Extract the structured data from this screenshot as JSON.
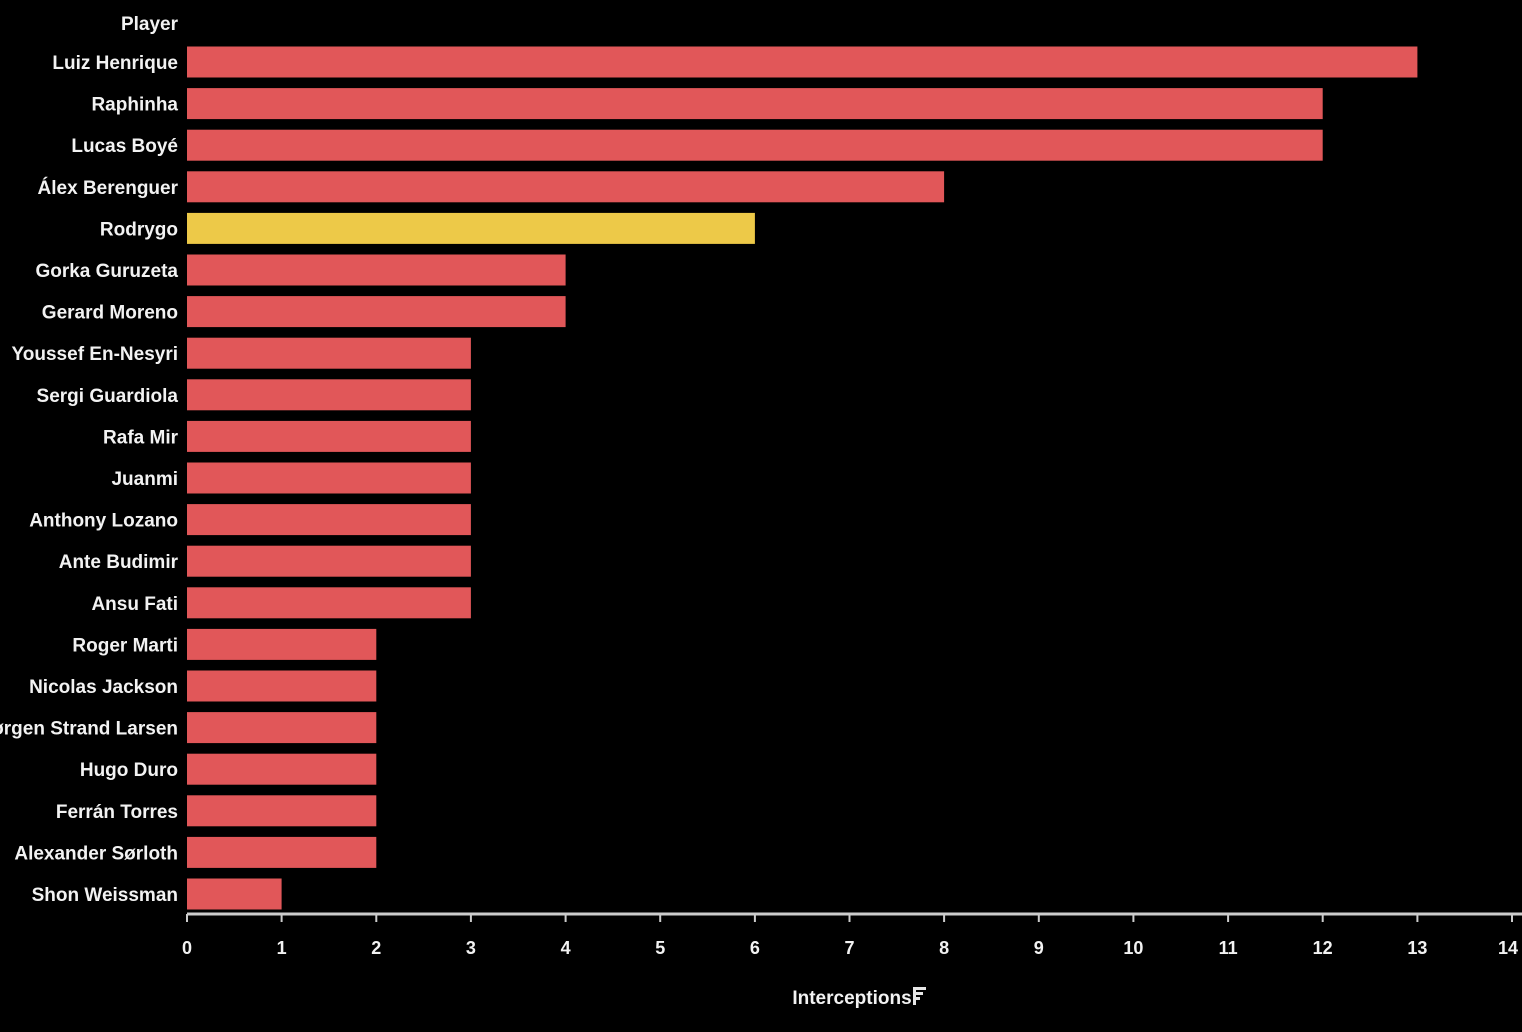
{
  "chart_data": {
    "type": "bar",
    "orientation": "horizontal",
    "row_header": "Player",
    "xlabel": "Interceptions",
    "sort_icon": "sort-descending-icon",
    "xlim": [
      0,
      14
    ],
    "xticks": [
      0,
      1,
      2,
      3,
      4,
      5,
      6,
      7,
      8,
      9,
      10,
      11,
      12,
      13,
      14
    ],
    "grid": false,
    "background_color": "#000000",
    "bar_color": "#e15759",
    "highlight_color": "#edc948",
    "highlight_category": "Rodrygo",
    "categories": [
      "Luiz Henrique",
      "Raphinha",
      "Lucas Boyé",
      "Álex Berenguer",
      "Rodrygo",
      "Gorka Guruzeta",
      "Gerard Moreno",
      "Youssef En-Nesyri",
      "Sergi Guardiola",
      "Rafa Mir",
      "Juanmi",
      "Anthony Lozano",
      "Ante Budimir",
      "Ansu Fati",
      "Roger Marti",
      "Nicolas Jackson",
      "Jørgen Strand Larsen",
      "Hugo Duro",
      "Ferrán Torres",
      "Alexander Sørloth",
      "Shon Weissman"
    ],
    "values": [
      13,
      12,
      12,
      8,
      6,
      4,
      4,
      3,
      3,
      3,
      3,
      3,
      3,
      3,
      2,
      2,
      2,
      2,
      2,
      2,
      1
    ]
  }
}
